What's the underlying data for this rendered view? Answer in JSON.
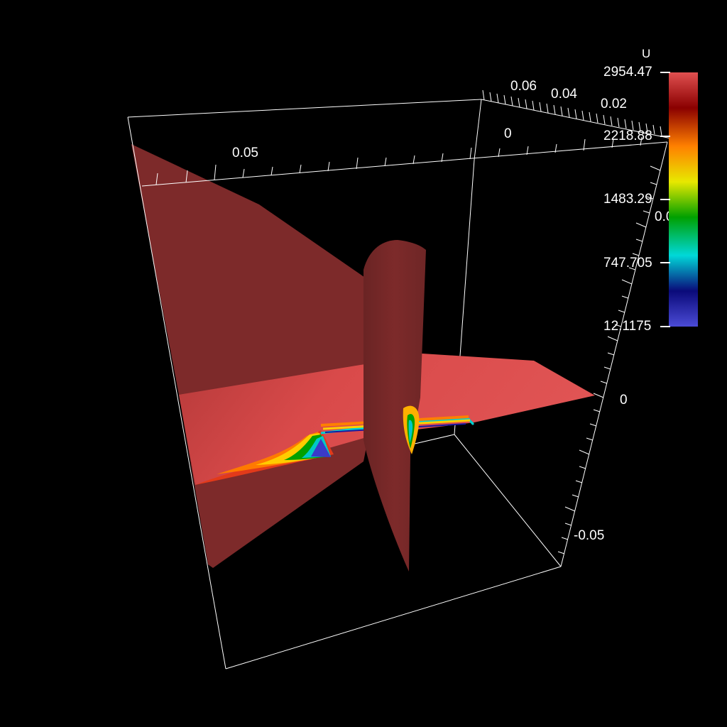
{
  "viewer": {
    "background": "#000000",
    "box_color": "#ffffff"
  },
  "axes": {
    "x_label_a": "0.05",
    "x_label_b": "0",
    "y_label_a": "0.06",
    "y_label_b": "0.04",
    "y_label_c": "0.02",
    "z_label_a": "0",
    "z_label_b": "-0.05",
    "partial_label": "0.0"
  },
  "colorbar": {
    "title": "U",
    "max_label": "2954.47",
    "label_2": "2218.88",
    "label_3": "1483.29",
    "label_4": "747.705",
    "min_label": "12.1175",
    "colormap": [
      "#4b4bd6",
      "#0a0a7a",
      "#00d8d8",
      "#00a000",
      "#e8e800",
      "#ff8000",
      "#8a0000",
      "#e05050"
    ]
  },
  "surfaces": {
    "plane_color": "#7d2a2a",
    "slice_color": "#d94a4a"
  }
}
